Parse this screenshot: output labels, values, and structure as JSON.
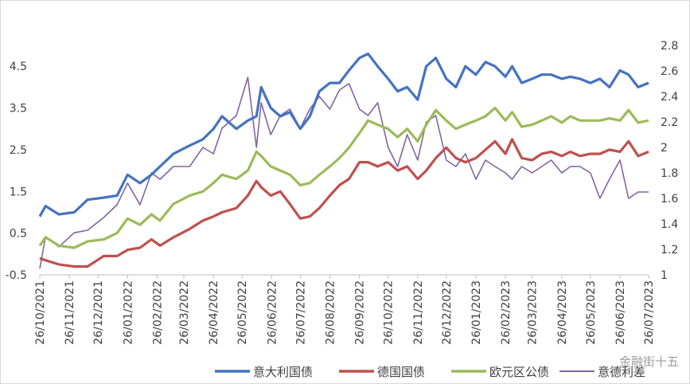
{
  "chart_data": {
    "type": "line",
    "title": "",
    "xlabel": "",
    "ylabel": "",
    "ylim": [
      -0.5,
      5.0
    ],
    "y2lim": [
      1.0,
      2.8
    ],
    "yticks": [
      -0.5,
      0.5,
      1.5,
      2.5,
      3.5,
      4.5
    ],
    "y2ticks": [
      1,
      1.2,
      1.4,
      1.6,
      1.8,
      2,
      2.2,
      2.4,
      2.6,
      2.8
    ],
    "grid": false,
    "legend_position": "bottom",
    "x_tick_labels": [
      "26/10/2021",
      "26/11/2021",
      "26/12/2021",
      "26/01/2022",
      "26/02/2022",
      "26/03/2022",
      "26/04/2022",
      "26/05/2022",
      "26/06/2022",
      "26/07/2022",
      "26/08/2022",
      "26/09/2022",
      "26/10/2022",
      "26/11/2022",
      "26/12/2022",
      "26/01/2023",
      "26/02/2023",
      "26/03/2023",
      "26/04/2023",
      "26/05/2023",
      "26/06/2023",
      "26/07/2023"
    ],
    "series": [
      {
        "name": "意大利国债",
        "axis": "left",
        "color": "#4472C4",
        "x": [
          "2021-10-26",
          "2021-11-01",
          "2021-11-15",
          "2021-12-01",
          "2021-12-15",
          "2022-01-01",
          "2022-01-15",
          "2022-01-26",
          "2022-02-08",
          "2022-02-20",
          "2022-03-01",
          "2022-03-15",
          "2022-04-01",
          "2022-04-15",
          "2022-04-26",
          "2022-05-05",
          "2022-05-20",
          "2022-06-01",
          "2022-06-10",
          "2022-06-15",
          "2022-06-25",
          "2022-07-05",
          "2022-07-15",
          "2022-07-26",
          "2022-08-05",
          "2022-08-15",
          "2022-08-26",
          "2022-09-05",
          "2022-09-15",
          "2022-09-26",
          "2022-10-05",
          "2022-10-15",
          "2022-10-26",
          "2022-11-05",
          "2022-11-15",
          "2022-11-26",
          "2022-12-05",
          "2022-12-15",
          "2022-12-26",
          "2023-01-05",
          "2023-01-15",
          "2023-01-26",
          "2023-02-05",
          "2023-02-15",
          "2023-02-26",
          "2023-03-05",
          "2023-03-15",
          "2023-03-26",
          "2023-04-05",
          "2023-04-15",
          "2023-04-26",
          "2023-05-05",
          "2023-05-15",
          "2023-05-26",
          "2023-06-05",
          "2023-06-15",
          "2023-06-26",
          "2023-07-05",
          "2023-07-15",
          "2023-07-26"
        ],
        "values": [
          0.9,
          1.15,
          0.95,
          1.0,
          1.3,
          1.35,
          1.4,
          1.9,
          1.7,
          1.9,
          2.1,
          2.4,
          2.6,
          2.75,
          3.0,
          3.3,
          3.0,
          3.2,
          3.3,
          4.0,
          3.5,
          3.3,
          3.4,
          3.0,
          3.3,
          3.9,
          4.1,
          4.1,
          4.4,
          4.7,
          4.8,
          4.5,
          4.2,
          3.9,
          4.0,
          3.7,
          4.5,
          4.7,
          4.2,
          4.0,
          4.5,
          4.3,
          4.6,
          4.5,
          4.25,
          4.5,
          4.1,
          4.2,
          4.3,
          4.3,
          4.2,
          4.25,
          4.2,
          4.1,
          4.2,
          4.0,
          4.4,
          4.3,
          4.0,
          4.1
        ]
      },
      {
        "name": "德国国债",
        "axis": "left",
        "color": "#C0504D",
        "x": [
          "2021-10-26",
          "2021-11-01",
          "2021-11-15",
          "2021-12-01",
          "2021-12-15",
          "2022-01-01",
          "2022-01-15",
          "2022-01-26",
          "2022-02-08",
          "2022-02-20",
          "2022-03-01",
          "2022-03-15",
          "2022-04-01",
          "2022-04-15",
          "2022-04-26",
          "2022-05-05",
          "2022-05-20",
          "2022-06-01",
          "2022-06-10",
          "2022-06-15",
          "2022-06-25",
          "2022-07-05",
          "2022-07-15",
          "2022-07-26",
          "2022-08-05",
          "2022-08-15",
          "2022-08-26",
          "2022-09-05",
          "2022-09-15",
          "2022-09-26",
          "2022-10-05",
          "2022-10-15",
          "2022-10-26",
          "2022-11-05",
          "2022-11-15",
          "2022-11-26",
          "2022-12-05",
          "2022-12-15",
          "2022-12-26",
          "2023-01-05",
          "2023-01-15",
          "2023-01-26",
          "2023-02-05",
          "2023-02-15",
          "2023-02-26",
          "2023-03-05",
          "2023-03-15",
          "2023-03-26",
          "2023-04-05",
          "2023-04-15",
          "2023-04-26",
          "2023-05-05",
          "2023-05-15",
          "2023-05-26",
          "2023-06-05",
          "2023-06-15",
          "2023-06-26",
          "2023-07-05",
          "2023-07-15",
          "2023-07-26"
        ],
        "values": [
          -0.1,
          -0.15,
          -0.25,
          -0.3,
          -0.3,
          -0.05,
          -0.05,
          0.1,
          0.15,
          0.35,
          0.2,
          0.4,
          0.6,
          0.8,
          0.9,
          1.0,
          1.1,
          1.4,
          1.75,
          1.6,
          1.4,
          1.5,
          1.2,
          0.85,
          0.9,
          1.1,
          1.4,
          1.65,
          1.8,
          2.2,
          2.2,
          2.1,
          2.2,
          2.0,
          2.1,
          1.8,
          2.0,
          2.3,
          2.55,
          2.3,
          2.2,
          2.3,
          2.5,
          2.7,
          2.4,
          2.75,
          2.3,
          2.25,
          2.4,
          2.45,
          2.35,
          2.45,
          2.35,
          2.4,
          2.4,
          2.5,
          2.45,
          2.7,
          2.35,
          2.45
        ]
      },
      {
        "name": "欧元区公债",
        "axis": "left",
        "color": "#9BBB59",
        "x": [
          "2021-10-26",
          "2021-11-01",
          "2021-11-15",
          "2021-12-01",
          "2021-12-15",
          "2022-01-01",
          "2022-01-15",
          "2022-01-26",
          "2022-02-08",
          "2022-02-20",
          "2022-03-01",
          "2022-03-15",
          "2022-04-01",
          "2022-04-15",
          "2022-04-26",
          "2022-05-05",
          "2022-05-20",
          "2022-06-01",
          "2022-06-10",
          "2022-06-15",
          "2022-06-25",
          "2022-07-05",
          "2022-07-15",
          "2022-07-26",
          "2022-08-05",
          "2022-08-15",
          "2022-08-26",
          "2022-09-05",
          "2022-09-15",
          "2022-09-26",
          "2022-10-05",
          "2022-10-15",
          "2022-10-26",
          "2022-11-05",
          "2022-11-15",
          "2022-11-26",
          "2022-12-05",
          "2022-12-15",
          "2022-12-26",
          "2023-01-05",
          "2023-01-15",
          "2023-01-26",
          "2023-02-05",
          "2023-02-15",
          "2023-02-26",
          "2023-03-05",
          "2023-03-15",
          "2023-03-26",
          "2023-04-05",
          "2023-04-15",
          "2023-04-26",
          "2023-05-05",
          "2023-05-15",
          "2023-05-26",
          "2023-06-05",
          "2023-06-15",
          "2023-06-26",
          "2023-07-05",
          "2023-07-15",
          "2023-07-26"
        ],
        "values": [
          0.2,
          0.4,
          0.2,
          0.15,
          0.3,
          0.35,
          0.5,
          0.85,
          0.7,
          0.95,
          0.8,
          1.2,
          1.4,
          1.5,
          1.7,
          1.9,
          1.8,
          2.0,
          2.45,
          2.35,
          2.1,
          2.0,
          1.9,
          1.65,
          1.7,
          1.9,
          2.1,
          2.3,
          2.55,
          2.9,
          3.2,
          3.1,
          3.0,
          2.8,
          3.0,
          2.7,
          3.1,
          3.45,
          3.2,
          3.0,
          3.1,
          3.2,
          3.3,
          3.5,
          3.2,
          3.4,
          3.05,
          3.1,
          3.2,
          3.3,
          3.15,
          3.3,
          3.2,
          3.2,
          3.2,
          3.25,
          3.2,
          3.45,
          3.15,
          3.2
        ]
      },
      {
        "name": "意德利差",
        "axis": "right",
        "color": "#8064A2",
        "x": [
          "2021-10-26",
          "2021-11-01",
          "2021-11-15",
          "2021-12-01",
          "2021-12-15",
          "2022-01-01",
          "2022-01-15",
          "2022-01-26",
          "2022-02-08",
          "2022-02-20",
          "2022-03-01",
          "2022-03-15",
          "2022-04-01",
          "2022-04-15",
          "2022-04-26",
          "2022-05-05",
          "2022-05-20",
          "2022-06-01",
          "2022-06-10",
          "2022-06-15",
          "2022-06-25",
          "2022-07-05",
          "2022-07-15",
          "2022-07-26",
          "2022-08-05",
          "2022-08-15",
          "2022-08-26",
          "2022-09-05",
          "2022-09-15",
          "2022-09-26",
          "2022-10-05",
          "2022-10-15",
          "2022-10-26",
          "2022-11-05",
          "2022-11-15",
          "2022-11-26",
          "2022-12-05",
          "2022-12-15",
          "2022-12-26",
          "2023-01-05",
          "2023-01-15",
          "2023-01-26",
          "2023-02-05",
          "2023-02-15",
          "2023-02-26",
          "2023-03-05",
          "2023-03-15",
          "2023-03-26",
          "2023-04-05",
          "2023-04-15",
          "2023-04-26",
          "2023-05-05",
          "2023-05-15",
          "2023-05-26",
          "2023-06-05",
          "2023-06-15",
          "2023-06-26",
          "2023-07-05",
          "2023-07-15",
          "2023-07-26"
        ],
        "values": [
          1.05,
          1.3,
          1.22,
          1.33,
          1.35,
          1.45,
          1.55,
          1.72,
          1.55,
          1.8,
          1.75,
          1.85,
          1.85,
          2.0,
          1.95,
          2.15,
          2.25,
          2.55,
          2.0,
          2.35,
          2.1,
          2.25,
          2.3,
          2.15,
          2.3,
          2.4,
          2.3,
          2.45,
          2.5,
          2.3,
          2.25,
          2.35,
          2.0,
          1.85,
          2.1,
          1.9,
          2.2,
          2.25,
          1.9,
          1.85,
          1.95,
          1.75,
          1.9,
          1.85,
          1.8,
          1.75,
          1.85,
          1.8,
          1.85,
          1.9,
          1.8,
          1.85,
          1.85,
          1.8,
          1.6,
          1.75,
          1.9,
          1.6,
          1.65,
          1.65
        ]
      }
    ]
  },
  "watermark_text": "金融街十五"
}
